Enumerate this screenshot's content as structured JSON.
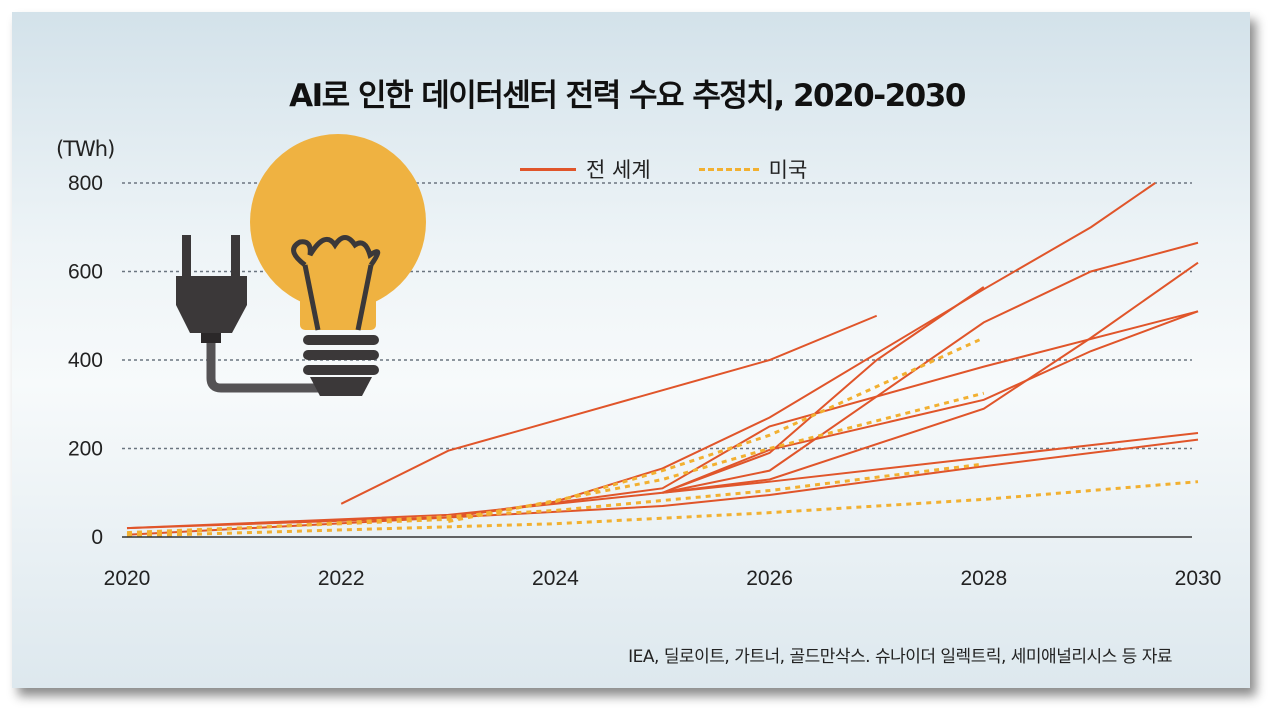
{
  "chart_data": {
    "type": "line",
    "title": "AI로 인한 데이터센터 전력 수요 추정치, 2020-2030",
    "ylabel": "(TWh)",
    "xlabel": "",
    "xlim": [
      2020,
      2030
    ],
    "ylim": [
      0,
      800
    ],
    "x_ticks": [
      "2020",
      "2022",
      "2024",
      "2026",
      "2028",
      "2030"
    ],
    "y_ticks": [
      "0",
      "200",
      "400",
      "600",
      "800"
    ],
    "grid": "horizontal dotted",
    "legend": {
      "position": "top-center",
      "entries": [
        {
          "label": "전 세계",
          "style": "solid",
          "color": "#e0552a"
        },
        {
          "label": "미국",
          "style": "dashed",
          "color": "#f2b030"
        }
      ]
    },
    "series": [
      {
        "group": "world",
        "points": [
          [
            2022,
            75
          ],
          [
            2023,
            195
          ],
          [
            2026,
            400
          ],
          [
            2027,
            500
          ]
        ]
      },
      {
        "group": "world",
        "points": [
          [
            2020,
            20
          ],
          [
            2023,
            45
          ],
          [
            2024,
            80
          ],
          [
            2025,
            155
          ],
          [
            2026,
            270
          ],
          [
            2028,
            560
          ],
          [
            2029,
            700
          ],
          [
            2029.6,
            800
          ]
        ]
      },
      {
        "group": "world",
        "points": [
          [
            2025,
            100
          ],
          [
            2026,
            190
          ],
          [
            2027,
            400
          ],
          [
            2028,
            565
          ]
        ]
      },
      {
        "group": "world",
        "points": [
          [
            2025,
            100
          ],
          [
            2026,
            150
          ],
          [
            2028,
            485
          ],
          [
            2029,
            600
          ],
          [
            2030,
            665
          ]
        ]
      },
      {
        "group": "world",
        "points": [
          [
            2023,
            45
          ],
          [
            2025,
            110
          ],
          [
            2026,
            250
          ],
          [
            2028,
            385
          ],
          [
            2030,
            510
          ]
        ]
      },
      {
        "group": "world",
        "points": [
          [
            2025,
            100
          ],
          [
            2026,
            197
          ],
          [
            2028,
            310
          ],
          [
            2029,
            420
          ],
          [
            2030,
            510
          ]
        ]
      },
      {
        "group": "world",
        "points": [
          [
            2025,
            100
          ],
          [
            2026,
            130
          ],
          [
            2028,
            290
          ],
          [
            2029,
            450
          ],
          [
            2030,
            620
          ]
        ]
      },
      {
        "group": "world",
        "points": [
          [
            2020,
            20
          ],
          [
            2023,
            50
          ],
          [
            2025,
            100
          ],
          [
            2026,
            125
          ],
          [
            2028,
            180
          ],
          [
            2030,
            235
          ]
        ]
      },
      {
        "group": "world",
        "points": [
          [
            2020,
            5
          ],
          [
            2025,
            70
          ],
          [
            2026,
            95
          ],
          [
            2028,
            160
          ],
          [
            2030,
            220
          ]
        ]
      },
      {
        "group": "us",
        "points": [
          [
            2020,
            10
          ],
          [
            2023,
            40
          ],
          [
            2024,
            80
          ],
          [
            2025,
            150
          ],
          [
            2026,
            230
          ],
          [
            2028,
            450
          ]
        ]
      },
      {
        "group": "us",
        "points": [
          [
            2023,
            35
          ],
          [
            2025,
            130
          ],
          [
            2026,
            200
          ],
          [
            2028,
            325
          ]
        ]
      },
      {
        "group": "us",
        "points": [
          [
            2020,
            5
          ],
          [
            2024,
            60
          ],
          [
            2026,
            105
          ],
          [
            2028,
            165
          ]
        ]
      },
      {
        "group": "us",
        "points": [
          [
            2020,
            2
          ],
          [
            2024,
            30
          ],
          [
            2026,
            55
          ],
          [
            2028,
            85
          ],
          [
            2030,
            125
          ]
        ]
      }
    ],
    "source": "IEA, 딜로이트, 가트너, 골드만삭스. 슈나이더 일렉트릭, 세미애널리시스 등 자료"
  },
  "colors": {
    "world": "#e0552a",
    "us": "#f2b030",
    "bulb": "#efb241",
    "dark": "#3b3839"
  }
}
